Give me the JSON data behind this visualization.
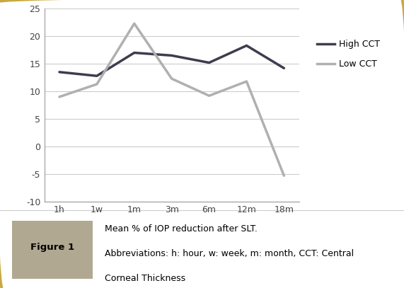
{
  "x_labels": [
    "1h",
    "1w",
    "1m",
    "3m",
    "6m",
    "12m",
    "18m"
  ],
  "high_cct": [
    13.5,
    12.8,
    17.0,
    16.5,
    15.2,
    18.3,
    14.2
  ],
  "low_cct": [
    9.0,
    11.3,
    22.3,
    12.3,
    9.2,
    11.8,
    -5.3
  ],
  "high_cct_color": "#3d3d4f",
  "low_cct_color": "#b0b0b0",
  "ylim": [
    -10,
    25
  ],
  "yticks": [
    -10,
    -5,
    0,
    5,
    10,
    15,
    20,
    25
  ],
  "line_width": 2.5,
  "bg_color": "#ffffff",
  "outer_border_color": "#c8a840",
  "figure_label": "Figure 1",
  "figure_label_bg": "#b0a890",
  "caption_line1": "Mean % of IOP reduction after SLT.",
  "caption_line2": "Abbreviations: h: hour, w: week, m: month, CCT: Central",
  "caption_line3": "Corneal Thickness",
  "legend_high": "High CCT",
  "legend_low": "Low CCT",
  "caption_bg": "#f5f5f5",
  "grid_color": "#cccccc",
  "spine_color": "#999999"
}
